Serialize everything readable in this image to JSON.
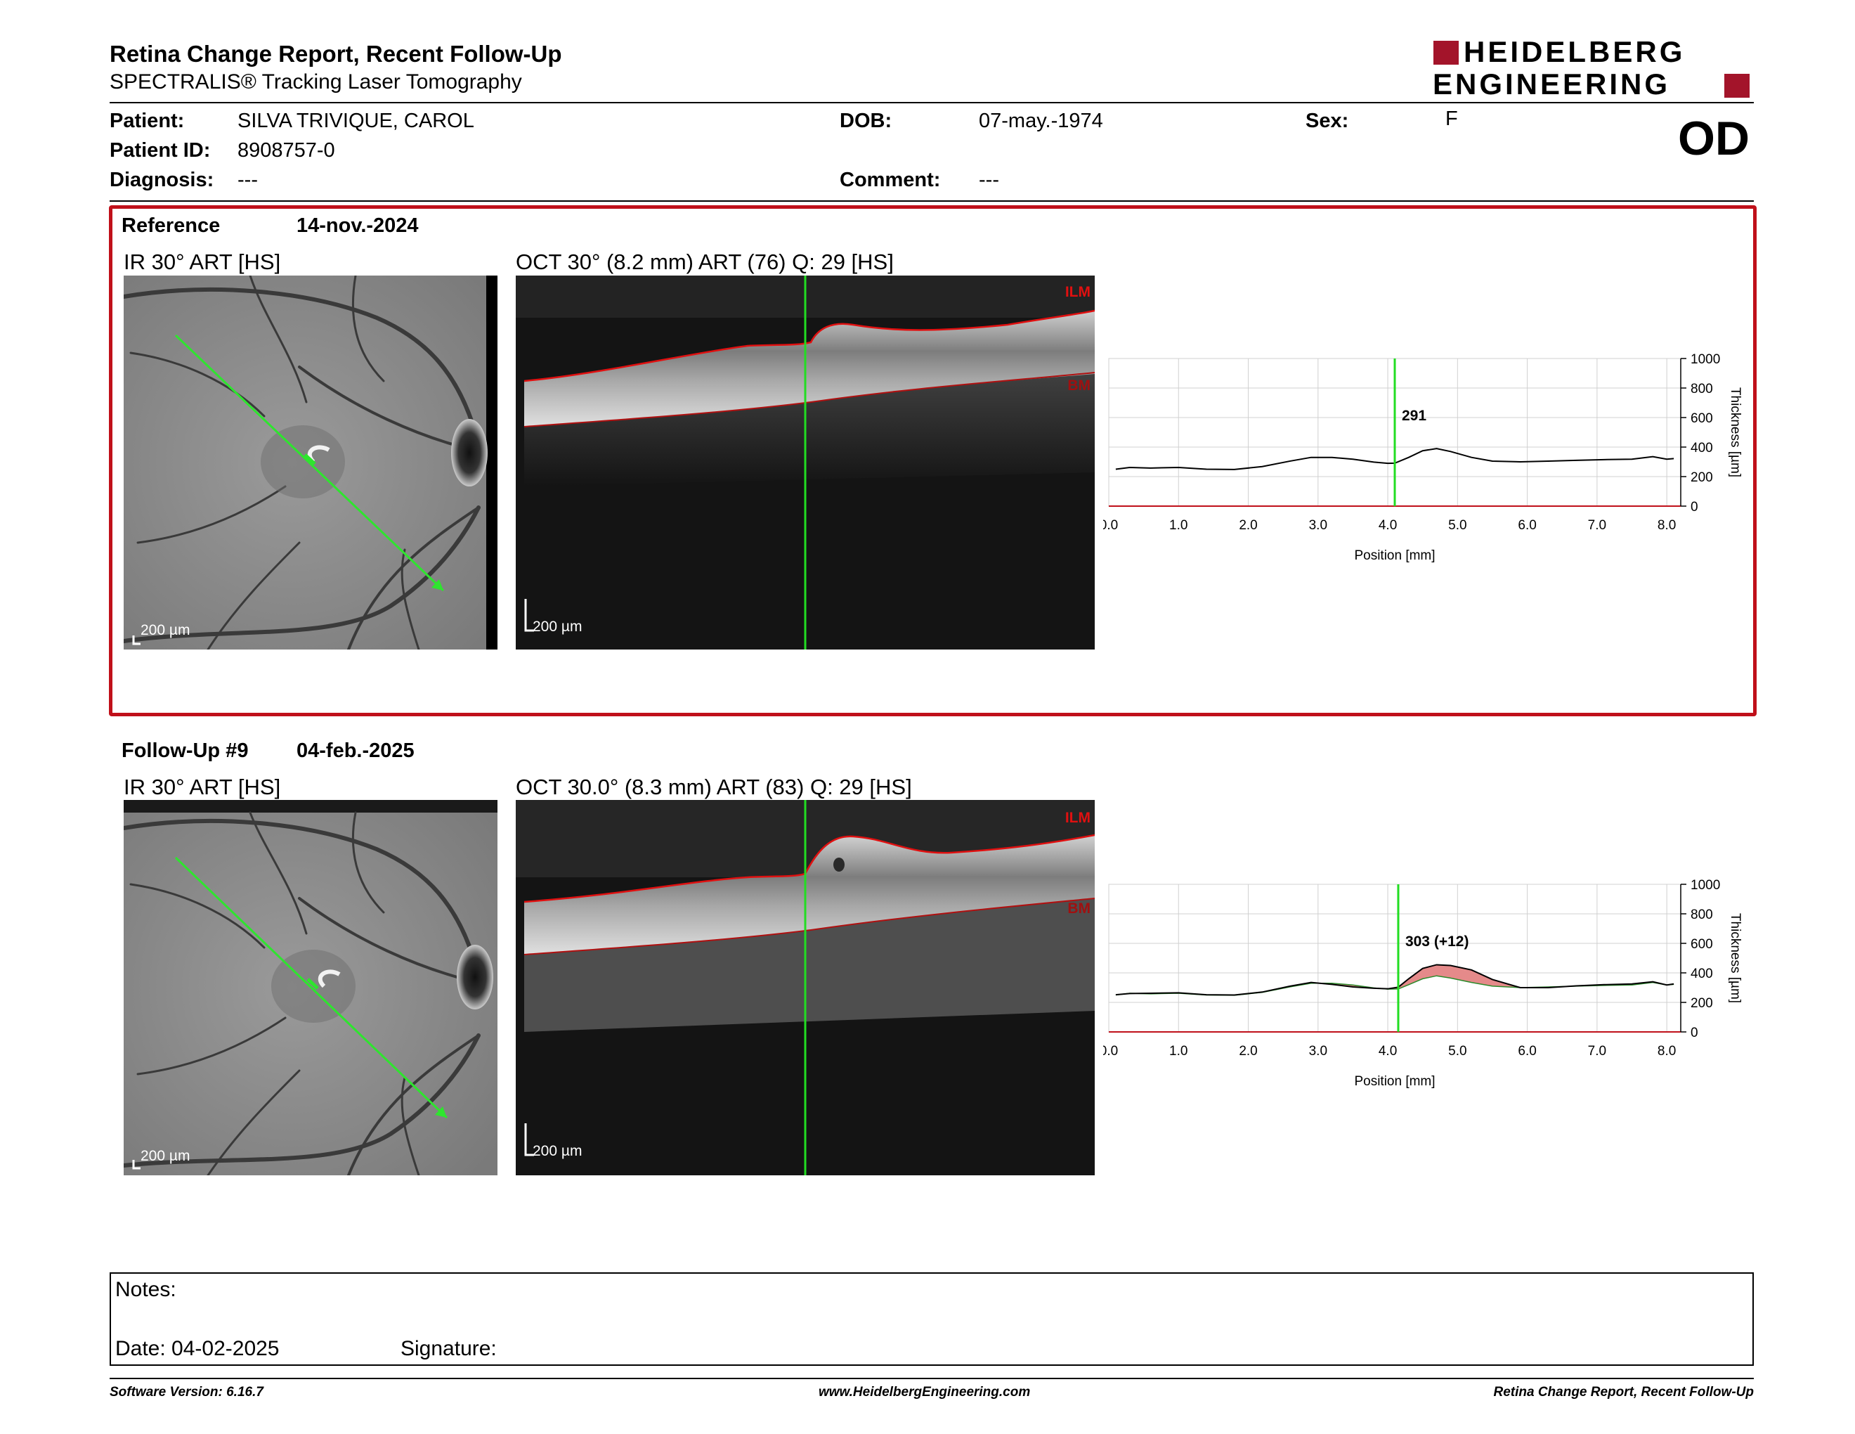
{
  "header": {
    "title": "Retina Change Report, Recent Follow-Up",
    "subtitle": "SPECTRALIS® Tracking Laser Tomography",
    "logo_line1": "HEIDELBERG",
    "logo_line2": "ENGINEERING",
    "eye": "OD"
  },
  "patient": {
    "patient_label": "Patient:",
    "patient_value": "SILVA TRIVIQUE, CAROL",
    "id_label": "Patient ID:",
    "id_value": "8908757-0",
    "diagnosis_label": "Diagnosis:",
    "diagnosis_value": "---",
    "dob_label": "DOB:",
    "dob_value": "07-may.-1974",
    "comment_label": "Comment:",
    "comment_value": "---",
    "sex_label": "Sex:",
    "sex_value": "F"
  },
  "reference": {
    "label": "Reference",
    "date": "14-nov.-2024",
    "ir_title": "IR 30° ART [HS]",
    "oct_title": "OCT 30° (8.2 mm) ART (76) Q: 29 [HS]",
    "ir_scale": "200 µm",
    "oct_scale": "200 µm",
    "ilm": "ILM",
    "bm": "BM"
  },
  "followup": {
    "label": "Follow-Up #9",
    "date": "04-feb.-2025",
    "ir_title": "IR 30° ART [HS]",
    "oct_title": "OCT 30.0° (8.3 mm) ART (83) Q: 29 [HS]",
    "ir_scale": "200 µm",
    "oct_scale": "200 µm",
    "ilm": "ILM",
    "bm": "BM"
  },
  "chart_data": [
    {
      "type": "line",
      "xlabel": "Position [mm]",
      "ylabel": "Thickness [µm]",
      "xlim": [
        0,
        8.2
      ],
      "ylim": [
        0,
        1000
      ],
      "xticks": [
        "0.0",
        "1.0",
        "2.0",
        "3.0",
        "4.0",
        "5.0",
        "6.0",
        "7.0",
        "8.0"
      ],
      "yticks": [
        "0",
        "200",
        "400",
        "600",
        "800",
        "1000"
      ],
      "cursor_x": 4.1,
      "cursor_label": "291",
      "series": [
        {
          "x": [
            0.1,
            0.3,
            0.6,
            1.0,
            1.4,
            1.8,
            2.2,
            2.6,
            2.9,
            3.2,
            3.5,
            3.8,
            4.0,
            4.1,
            4.3,
            4.5,
            4.7,
            4.9,
            5.2,
            5.5,
            5.9,
            6.3,
            6.7,
            7.1,
            7.5,
            7.8,
            8.0,
            8.1
          ],
          "y": [
            250,
            262,
            258,
            262,
            250,
            248,
            268,
            305,
            330,
            330,
            318,
            298,
            290,
            291,
            330,
            375,
            390,
            370,
            330,
            305,
            300,
            305,
            310,
            315,
            318,
            335,
            318,
            322
          ]
        }
      ]
    },
    {
      "type": "area",
      "xlabel": "Position [mm]",
      "ylabel": "Thickness [µm]",
      "xlim": [
        0,
        8.2
      ],
      "ylim": [
        0,
        1000
      ],
      "xticks": [
        "0.0",
        "1.0",
        "2.0",
        "3.0",
        "4.0",
        "5.0",
        "6.0",
        "7.0",
        "8.0"
      ],
      "yticks": [
        "0",
        "200",
        "400",
        "600",
        "800",
        "1000"
      ],
      "cursor_x": 4.15,
      "cursor_label": "303 (+12)",
      "series": [
        {
          "x": [
            0.1,
            0.3,
            0.6,
            1.0,
            1.4,
            1.8,
            2.2,
            2.6,
            2.9,
            3.2,
            3.5,
            3.8,
            4.0,
            4.15,
            4.3,
            4.5,
            4.7,
            4.9,
            5.2,
            5.5,
            5.9,
            6.3,
            6.7,
            7.1,
            7.5,
            7.8,
            8.0,
            8.1
          ],
          "y": [
            252,
            260,
            262,
            265,
            252,
            250,
            270,
            310,
            335,
            322,
            305,
            296,
            292,
            303,
            360,
            430,
            455,
            450,
            420,
            355,
            300,
            300,
            312,
            320,
            325,
            340,
            318,
            325
          ]
        },
        {
          "x": [
            0.1,
            0.3,
            0.6,
            1.0,
            1.4,
            1.8,
            2.2,
            2.6,
            2.9,
            3.2,
            3.5,
            3.8,
            4.0,
            4.15,
            4.3,
            4.5,
            4.7,
            4.9,
            5.2,
            5.5,
            5.9,
            6.3,
            6.7,
            7.1,
            7.5,
            7.8,
            8.0,
            8.1
          ],
          "y": [
            250,
            262,
            258,
            262,
            250,
            248,
            268,
            305,
            330,
            330,
            318,
            298,
            290,
            291,
            320,
            360,
            380,
            365,
            335,
            310,
            300,
            305,
            310,
            315,
            318,
            335,
            318,
            322
          ]
        }
      ]
    }
  ],
  "notes": {
    "notes_label": "Notes:",
    "date_label": "Date: 04-02-2025",
    "signature_label": "Signature:"
  },
  "footer": {
    "software": "Software Version: 6.16.7",
    "website": "www.HeidelbergEngineering.com",
    "report": "Retina Change Report, Recent Follow-Up"
  },
  "colors": {
    "brand_red": "#a3142a",
    "frame_red": "#c0101a",
    "cursor_green": "#22dd22",
    "change_fill": "#e58a8a"
  }
}
